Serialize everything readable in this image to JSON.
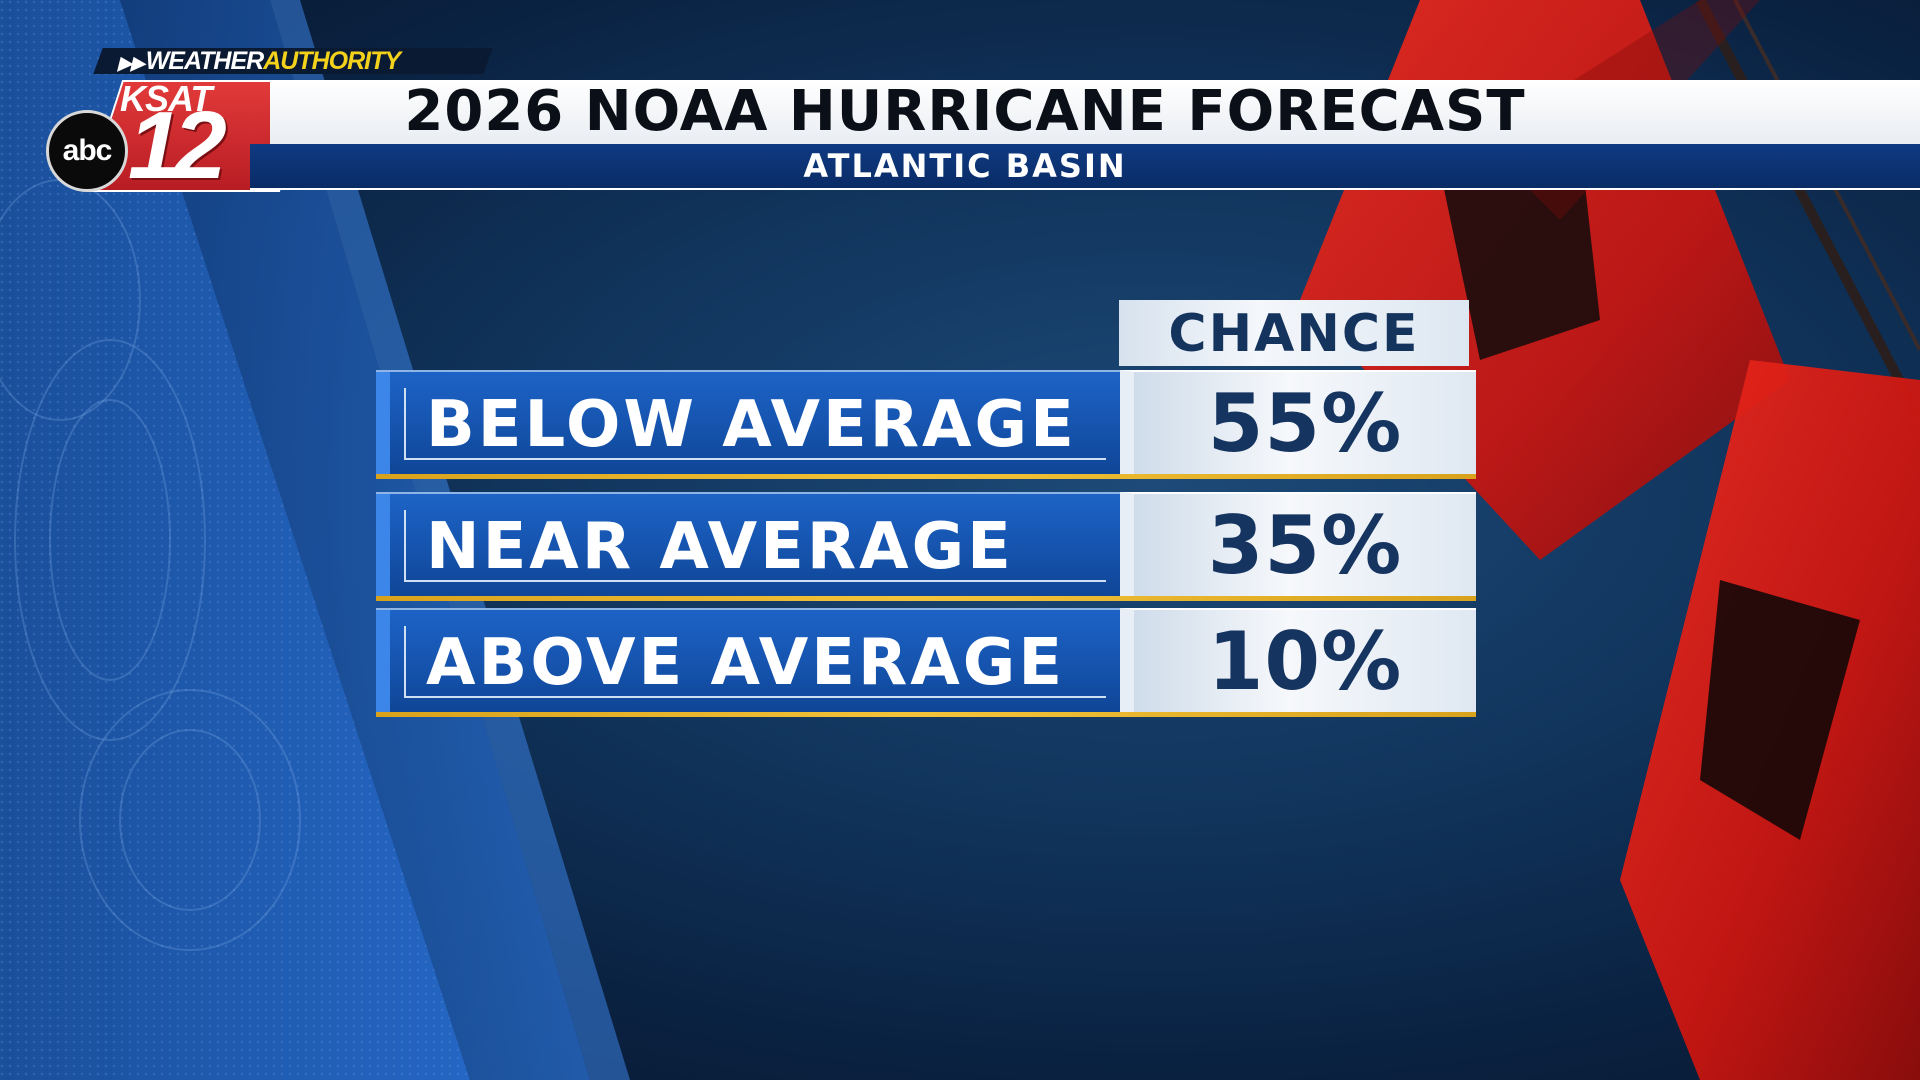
{
  "branding": {
    "weather": "WEATHER",
    "authority": "AUTHORITY",
    "station": "KSAT",
    "channel": "12",
    "network": "abc"
  },
  "header": {
    "title": "2026 NOAA HURRICANE FORECAST",
    "subtitle": "ATLANTIC BASIN"
  },
  "table": {
    "column_header": "CHANCE",
    "rows": [
      {
        "label": "BELOW AVERAGE",
        "value": "55%"
      },
      {
        "label": "NEAR AVERAGE",
        "value": "35%"
      },
      {
        "label": "ABOVE AVERAGE",
        "value": "10%"
      }
    ]
  },
  "colors": {
    "background": "#11355d",
    "label_blue": "#1553ad",
    "value_text": "#15345f",
    "gold_rule": "#f3c43a",
    "flag_red": "#e11b1b",
    "authority_yellow": "#f4d21c"
  }
}
